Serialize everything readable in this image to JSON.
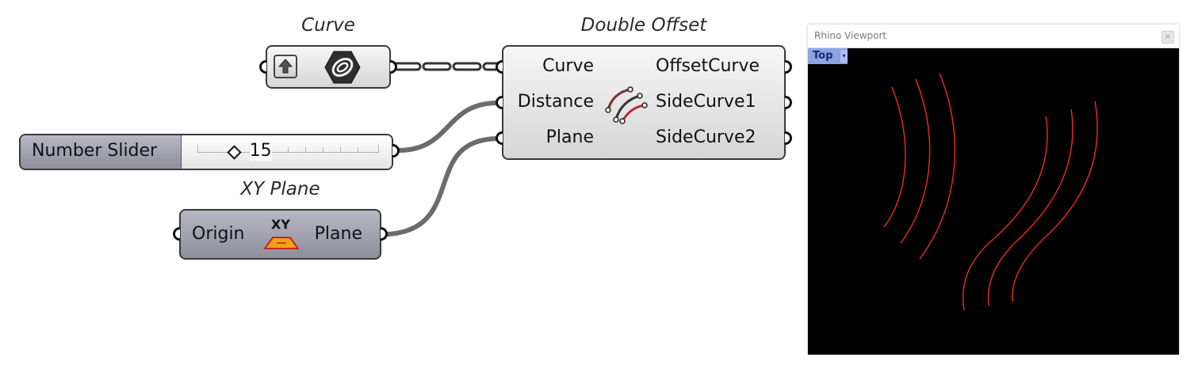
{
  "canvas": {
    "wire_color": "#6b6b6b",
    "curve_color": "#e0282d"
  },
  "curve_param": {
    "caption": "Curve",
    "param_icon": "upload-arrow-icon",
    "main_icon": "hexagon-curve-icon"
  },
  "double_offset": {
    "caption": "Double Offset",
    "inputs": [
      "Curve",
      "Distance",
      "Plane"
    ],
    "outputs": [
      "OffsetCurve",
      "SideCurve1",
      "SideCurve2"
    ],
    "icon": "double-offset-icon"
  },
  "number_slider": {
    "label": "Number Slider",
    "value": "15",
    "fraction": 0.2
  },
  "xy_plane": {
    "caption": "XY Plane",
    "input": "Origin",
    "output": "Plane",
    "icon_text": "XY",
    "icon": "xy-plane-icon"
  },
  "viewport": {
    "title": "Rhino Viewport",
    "tab_label": "Top",
    "close_glyph": "×",
    "tab_arrow": "▾"
  }
}
